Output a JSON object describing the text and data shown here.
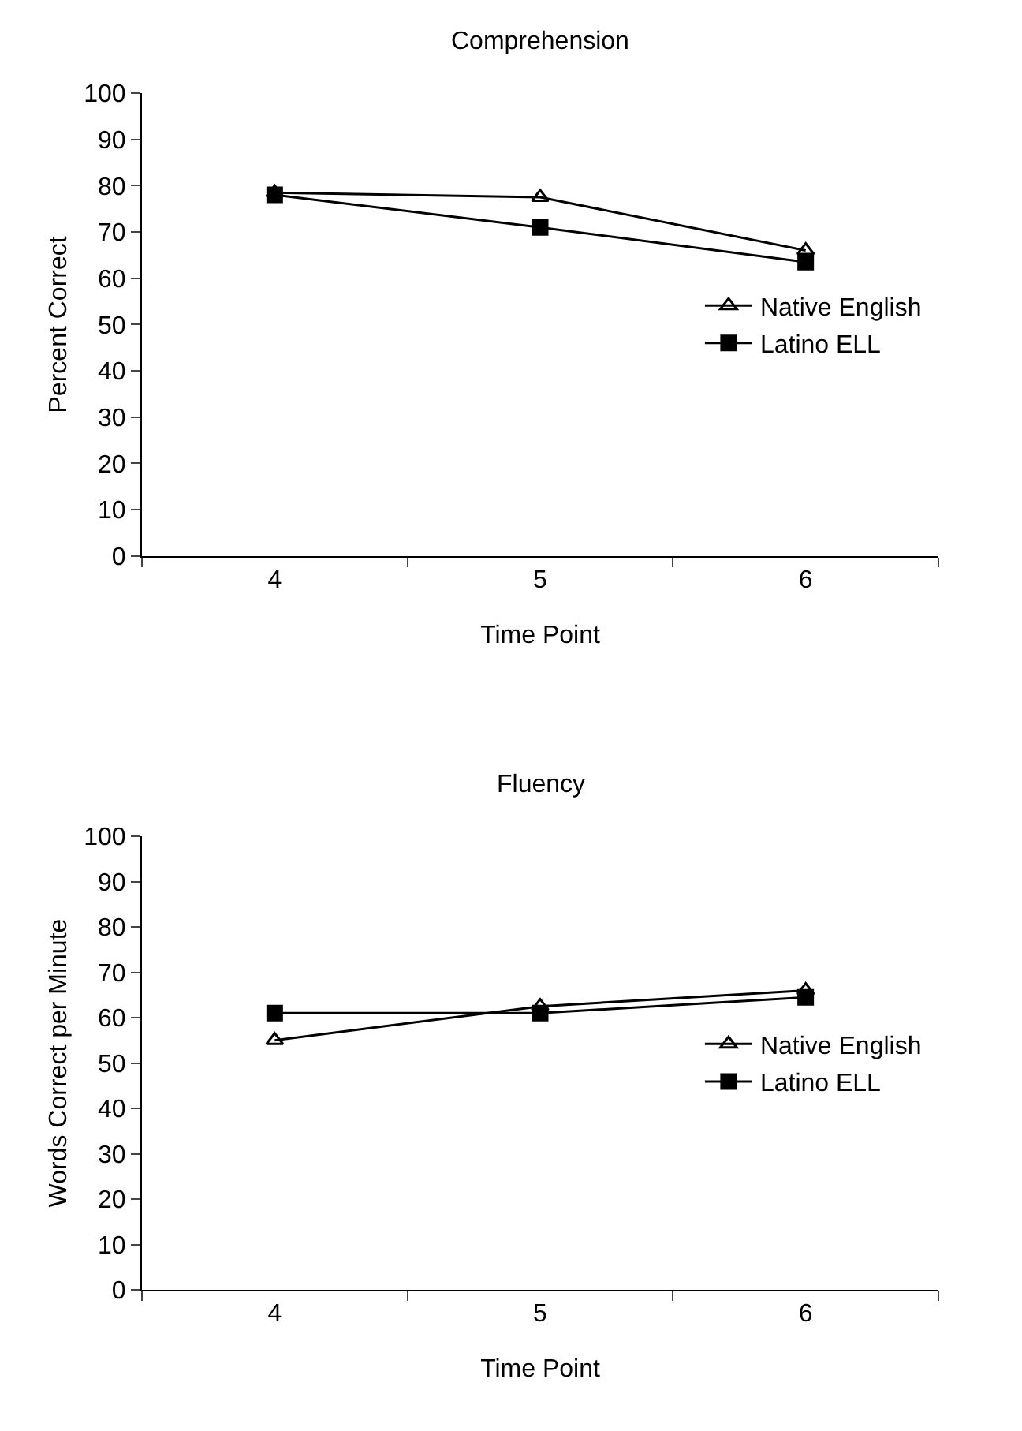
{
  "chart_data": [
    {
      "type": "line",
      "title": "Comprehension",
      "xlabel": "Time Point",
      "ylabel": "Percent Correct",
      "categories": [
        "4",
        "5",
        "6"
      ],
      "ylim": [
        0,
        100
      ],
      "yticks": [
        0,
        10,
        20,
        30,
        40,
        50,
        60,
        70,
        80,
        90,
        100
      ],
      "grid": false,
      "legend": "right",
      "series": [
        {
          "name": "Native English",
          "color": "#000000",
          "marker": "triangle",
          "values": [
            78.5,
            77.5,
            66
          ]
        },
        {
          "name": "Latino ELL",
          "color": "#000000",
          "marker": "square",
          "values": [
            78,
            71,
            63.5
          ]
        }
      ]
    },
    {
      "type": "line",
      "title": "Fluency",
      "xlabel": "Time Point",
      "ylabel": "Words Correct per Minute",
      "categories": [
        "4",
        "5",
        "6"
      ],
      "ylim": [
        0,
        100
      ],
      "yticks": [
        0,
        10,
        20,
        30,
        40,
        50,
        60,
        70,
        80,
        90,
        100
      ],
      "grid": false,
      "legend": "right",
      "series": [
        {
          "name": "Native English",
          "color": "#000000",
          "marker": "triangle",
          "values": [
            55,
            62.5,
            66
          ]
        },
        {
          "name": "Latino ELL",
          "color": "#000000",
          "marker": "square",
          "values": [
            61,
            61,
            64.5
          ]
        }
      ]
    }
  ]
}
